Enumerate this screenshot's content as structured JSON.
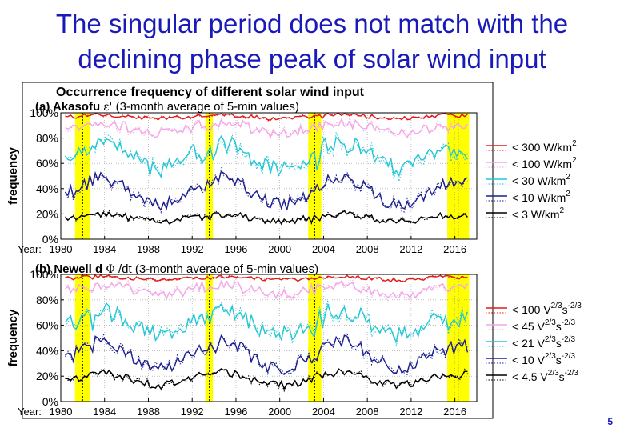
{
  "slide": {
    "title_line1": "The singular period does not match with the",
    "title_line2": "declining phase peak of solar wind input",
    "page_number": "5"
  },
  "figure": {
    "header": "Occurrence frequency of different solar wind input",
    "ylabel": "frequency",
    "year_prefix": "Year:",
    "colors": {
      "red": "#e01b1b",
      "pink": "#f2a6e6",
      "cyan": "#22c7d6",
      "navy": "#1c1f8f",
      "black": "#000000",
      "highlight": "#ffff00",
      "grid": "#9a9a9a"
    }
  },
  "chart_data": [
    {
      "type": "line",
      "title": "(a) Akasofu ε' (3-month average of 5-min values)",
      "title_prefix": "(a) Akasofu",
      "title_symbol": "ε'",
      "title_suffix": "(3-month average of 5-min values)",
      "xlabel": "Year",
      "ylabel": "frequency",
      "xlim": [
        1980,
        2018
      ],
      "ylim": [
        0,
        100
      ],
      "xticks": [
        "1980",
        "1984",
        "1988",
        "1992",
        "1996",
        "2000",
        "2004",
        "2008",
        "2012",
        "2016"
      ],
      "yticks": [
        "0%",
        "20%",
        "40%",
        "60%",
        "80%",
        "100%"
      ],
      "highlight_periods": [
        [
          1981.3,
          1982.7
        ],
        [
          1993.2,
          1993.9
        ],
        [
          2002.6,
          2003.8
        ],
        [
          2015.3,
          2017.3
        ]
      ],
      "legend_position": "right",
      "series": [
        {
          "name": "< 300 W/km²",
          "label": "< 300 W/km",
          "sup": "2",
          "color": "#e01b1b",
          "base": 97,
          "amp": 1.5,
          "noise": 1.5,
          "dip": 2
        },
        {
          "name": "< 100 W/km²",
          "label": "< 100 W/km",
          "sup": "2",
          "color": "#f2a6e6",
          "base": 88,
          "amp": 4,
          "noise": 4,
          "dip": 8
        },
        {
          "name": "< 30 W/km²",
          "label": "< 30 W/km",
          "sup": "2",
          "color": "#22c7d6",
          "base": 66,
          "amp": 10,
          "noise": 7,
          "dip": 18
        },
        {
          "name": "< 10 W/km²",
          "label": "< 10 W/km",
          "sup": "2",
          "color": "#1c1f8f",
          "base": 38,
          "amp": 11,
          "noise": 5,
          "dip": 15
        },
        {
          "name": "< 3 W/km²",
          "label": "< 3 W/km",
          "sup": "2",
          "color": "#000000",
          "base": 17,
          "amp": 3,
          "noise": 2.5,
          "dip": 4
        }
      ]
    },
    {
      "type": "line",
      "title": "(b) Newell dΦ/dt (3-month average of 5-min values)",
      "title_prefix": "(b) Newell d",
      "title_symbol": "Φ",
      "title_suffix": "/dt (3-month average of 5-min values)",
      "xlabel": "Year",
      "ylabel": "frequency",
      "xlim": [
        1980,
        2018
      ],
      "ylim": [
        0,
        100
      ],
      "xticks": [
        "1980",
        "1984",
        "1988",
        "1992",
        "1996",
        "2000",
        "2004",
        "2008",
        "2012",
        "2016"
      ],
      "yticks": [
        "0%",
        "20%",
        "40%",
        "60%",
        "80%",
        "100%"
      ],
      "highlight_periods": [
        [
          1981.3,
          1982.7
        ],
        [
          1993.2,
          1993.9
        ],
        [
          2002.6,
          2003.8
        ],
        [
          2015.3,
          2017.3
        ]
      ],
      "legend_position": "right",
      "series": [
        {
          "name": "< 100 V^2/3 s^-2/3",
          "label": "< 100 V",
          "sup": "2/3",
          "mid": "s",
          "sup2": "-2/3",
          "color": "#e01b1b",
          "base": 97,
          "amp": 1.5,
          "noise": 1.5,
          "dip": 2
        },
        {
          "name": "< 45 V^2/3 s^-2/3",
          "label": "<  45 V",
          "sup": "2/3",
          "mid": "s",
          "sup2": "-2/3",
          "color": "#f2a6e6",
          "base": 88,
          "amp": 4,
          "noise": 4,
          "dip": 8
        },
        {
          "name": "< 21 V^2/3 s^-2/3",
          "label": "<  21 V",
          "sup": "2/3",
          "mid": "s",
          "sup2": "-2/3",
          "color": "#22c7d6",
          "base": 62,
          "amp": 10,
          "noise": 7,
          "dip": 18
        },
        {
          "name": "< 10 V^2/3 s^-2/3",
          "label": "<  10 V",
          "sup": "2/3",
          "mid": "s",
          "sup2": "-2/3",
          "color": "#1c1f8f",
          "base": 37,
          "amp": 11,
          "noise": 5,
          "dip": 15
        },
        {
          "name": "< 4.5 V^2/3 s^-2/3",
          "label": "< 4.5 V",
          "sup": "2/3",
          "mid": "s",
          "sup2": "-2/3",
          "color": "#000000",
          "base": 18,
          "amp": 5,
          "noise": 3,
          "dip": 5
        }
      ]
    }
  ]
}
